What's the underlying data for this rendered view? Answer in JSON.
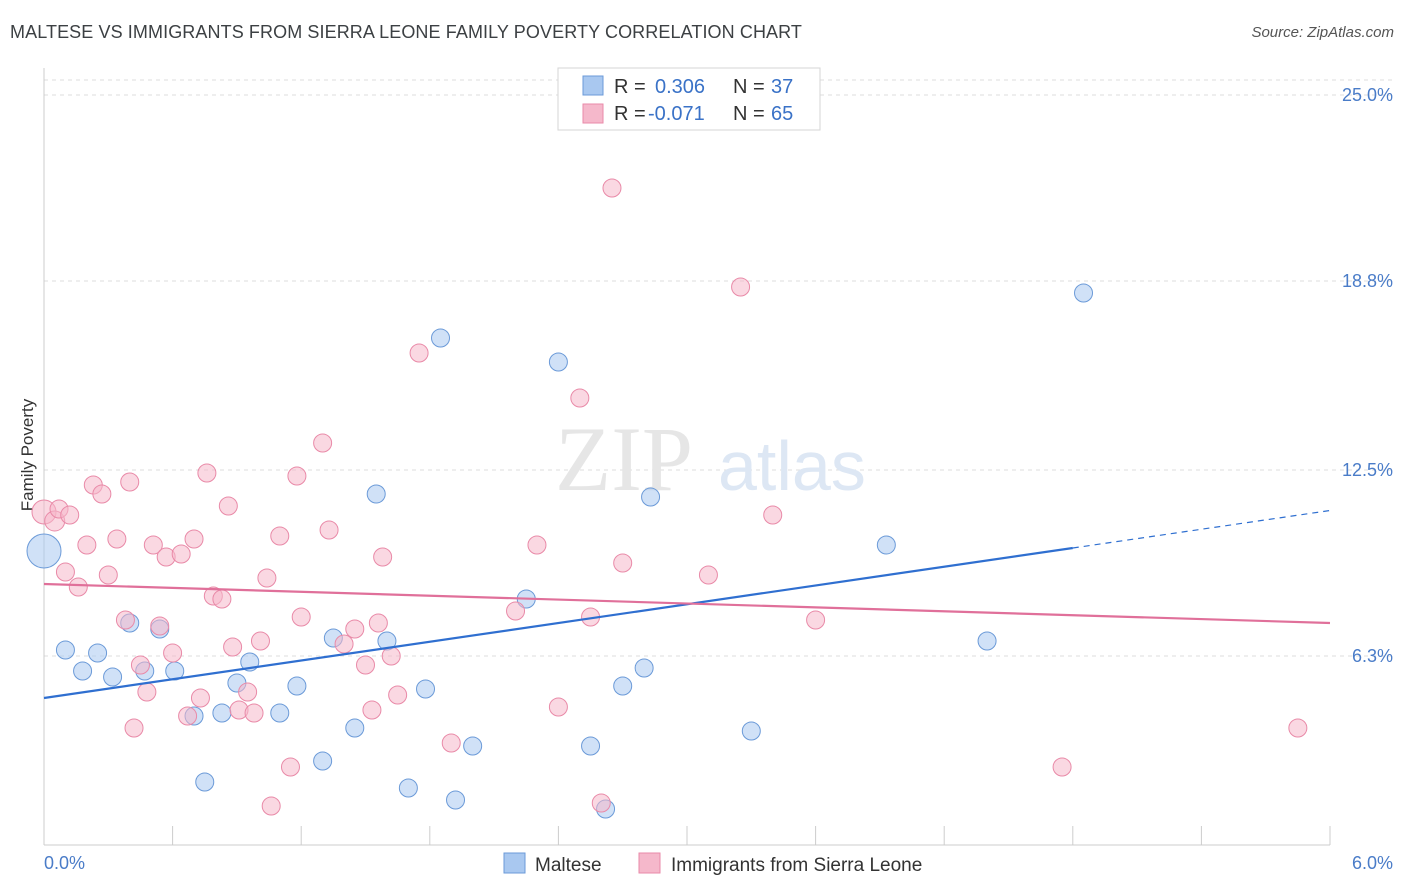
{
  "header": {
    "title": "MALTESE VS IMMIGRANTS FROM SIERRA LEONE FAMILY POVERTY CORRELATION CHART",
    "source": "Source: ZipAtlas.com"
  },
  "watermark": {
    "zip": "ZIP",
    "atlas": "atlas"
  },
  "legend": {
    "rows": [
      {
        "r_label": "R =",
        "r_value": "0.306",
        "n_label": "N =",
        "n_value": "37",
        "color": "#a9c8f0"
      },
      {
        "r_label": "R =",
        "r_value": "-0.071",
        "n_label": "N =",
        "n_value": "65",
        "color": "#f5b8cb"
      }
    ]
  },
  "bottom_legend": {
    "items": [
      {
        "label": "Maltese",
        "color": "#a9c8f0"
      },
      {
        "label": "Immigrants from Sierra Leone",
        "color": "#f5b8cb"
      }
    ]
  },
  "chart_data": {
    "type": "scatter",
    "title": "MALTESE VS IMMIGRANTS FROM SIERRA LEONE FAMILY POVERTY CORRELATION CHART",
    "xlabel": "",
    "ylabel": "Family Poverty",
    "xlim": [
      0,
      6
    ],
    "ylim": [
      0,
      25.9
    ],
    "x_tick_labels": [
      "0.0%",
      "6.0%"
    ],
    "y_ticks": [
      6.3,
      12.5,
      18.8,
      25.0
    ],
    "y_tick_labels": [
      "6.3%",
      "12.5%",
      "18.8%",
      "25.0%"
    ],
    "grid": "horizontal-dashed",
    "legend_placement": "top-center",
    "series": [
      {
        "name": "Maltese",
        "color": "#a9c8f0",
        "stroke": "#6b9ad8",
        "trend": {
          "x0": 0.0,
          "y0": 4.9,
          "x1": 4.8,
          "y1": 9.9,
          "dash_to_x": 6.0,
          "color": "#2f6fd0"
        },
        "points": [
          [
            0.0,
            9.8,
            17
          ],
          [
            0.1,
            6.5,
            9
          ],
          [
            0.18,
            5.8,
            9
          ],
          [
            0.25,
            6.4,
            9
          ],
          [
            0.32,
            5.6,
            9
          ],
          [
            0.4,
            7.4,
            9
          ],
          [
            0.47,
            5.8,
            9
          ],
          [
            0.54,
            7.2,
            9
          ],
          [
            0.61,
            5.8,
            9
          ],
          [
            0.7,
            4.3,
            9
          ],
          [
            0.75,
            2.1,
            9
          ],
          [
            0.83,
            4.4,
            9
          ],
          [
            0.9,
            5.4,
            9
          ],
          [
            0.96,
            6.1,
            9
          ],
          [
            1.1,
            4.4,
            9
          ],
          [
            1.18,
            5.3,
            9
          ],
          [
            1.3,
            2.8,
            9
          ],
          [
            1.35,
            6.9,
            9
          ],
          [
            1.45,
            3.9,
            9
          ],
          [
            1.55,
            11.7,
            9
          ],
          [
            1.6,
            6.8,
            9
          ],
          [
            1.7,
            1.9,
            9
          ],
          [
            1.78,
            5.2,
            9
          ],
          [
            1.85,
            16.9,
            9
          ],
          [
            1.92,
            1.5,
            9
          ],
          [
            2.0,
            3.3,
            9
          ],
          [
            2.25,
            8.2,
            9
          ],
          [
            2.4,
            16.1,
            9
          ],
          [
            2.55,
            3.3,
            9
          ],
          [
            2.62,
            1.2,
            9
          ],
          [
            2.7,
            5.3,
            9
          ],
          [
            2.8,
            5.9,
            9
          ],
          [
            2.83,
            11.6,
            9
          ],
          [
            3.3,
            3.8,
            9
          ],
          [
            3.93,
            10.0,
            9
          ],
          [
            4.4,
            6.8,
            9
          ],
          [
            4.85,
            18.4,
            9
          ]
        ]
      },
      {
        "name": "Immigrants from Sierra Leone",
        "color": "#f5b8cb",
        "stroke": "#e98aa8",
        "trend": {
          "x0": 0.0,
          "y0": 8.7,
          "x1": 6.0,
          "y1": 7.4,
          "color": "#e0709a"
        },
        "points": [
          [
            0.0,
            11.1,
            12
          ],
          [
            0.05,
            10.8,
            10
          ],
          [
            0.07,
            11.2,
            9
          ],
          [
            0.1,
            9.1,
            9
          ],
          [
            0.12,
            11.0,
            9
          ],
          [
            0.16,
            8.6,
            9
          ],
          [
            0.2,
            10.0,
            9
          ],
          [
            0.23,
            12.0,
            9
          ],
          [
            0.27,
            11.7,
            9
          ],
          [
            0.3,
            9.0,
            9
          ],
          [
            0.34,
            10.2,
            9
          ],
          [
            0.38,
            7.5,
            9
          ],
          [
            0.4,
            12.1,
            9
          ],
          [
            0.42,
            3.9,
            9
          ],
          [
            0.45,
            6.0,
            9
          ],
          [
            0.48,
            5.1,
            9
          ],
          [
            0.51,
            10.0,
            9
          ],
          [
            0.54,
            7.3,
            9
          ],
          [
            0.57,
            9.6,
            9
          ],
          [
            0.6,
            6.4,
            9
          ],
          [
            0.64,
            9.7,
            9
          ],
          [
            0.67,
            4.3,
            9
          ],
          [
            0.7,
            10.2,
            9
          ],
          [
            0.73,
            4.9,
            9
          ],
          [
            0.76,
            12.4,
            9
          ],
          [
            0.79,
            8.3,
            9
          ],
          [
            0.83,
            8.2,
            9
          ],
          [
            0.86,
            11.3,
            9
          ],
          [
            0.88,
            6.6,
            9
          ],
          [
            0.91,
            4.5,
            9
          ],
          [
            0.95,
            5.1,
            9
          ],
          [
            0.98,
            4.4,
            9
          ],
          [
            1.01,
            6.8,
            9
          ],
          [
            1.04,
            8.9,
            9
          ],
          [
            1.06,
            1.3,
            9
          ],
          [
            1.1,
            10.3,
            9
          ],
          [
            1.15,
            2.6,
            9
          ],
          [
            1.18,
            12.3,
            9
          ],
          [
            1.2,
            7.6,
            9
          ],
          [
            1.3,
            13.4,
            9
          ],
          [
            1.33,
            10.5,
            9
          ],
          [
            1.4,
            6.7,
            9
          ],
          [
            1.45,
            7.2,
            9
          ],
          [
            1.5,
            6.0,
            9
          ],
          [
            1.53,
            4.5,
            9
          ],
          [
            1.56,
            7.4,
            9
          ],
          [
            1.58,
            9.6,
            9
          ],
          [
            1.62,
            6.3,
            9
          ],
          [
            1.65,
            5.0,
            9
          ],
          [
            1.75,
            16.4,
            9
          ],
          [
            1.9,
            3.4,
            9
          ],
          [
            2.2,
            7.8,
            9
          ],
          [
            2.3,
            10.0,
            9
          ],
          [
            2.4,
            4.6,
            9
          ],
          [
            2.5,
            14.9,
            9
          ],
          [
            2.55,
            7.6,
            9
          ],
          [
            2.6,
            1.4,
            9
          ],
          [
            2.65,
            21.9,
            9
          ],
          [
            2.7,
            9.4,
            9
          ],
          [
            3.1,
            9.0,
            9
          ],
          [
            3.25,
            18.6,
            9
          ],
          [
            3.4,
            11.0,
            9
          ],
          [
            3.6,
            7.5,
            9
          ],
          [
            4.75,
            2.6,
            9
          ],
          [
            5.85,
            3.9,
            9
          ]
        ]
      }
    ]
  }
}
